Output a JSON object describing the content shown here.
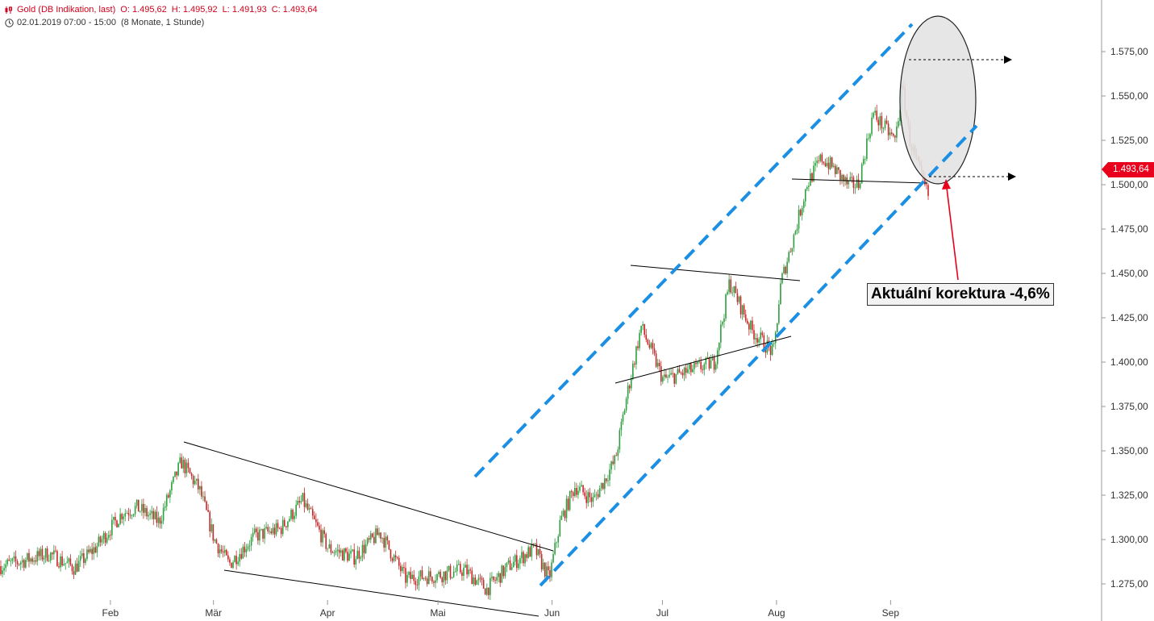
{
  "header": {
    "instrument": "Gold (DB Indikation, last)",
    "open": "O: 1.495,62",
    "high": "H: 1.495,92",
    "low": "L: 1.491,93",
    "close": "C: 1.493,64",
    "period": "02.01.2019 07:00 - 15:00",
    "range": "(8 Monate, 1 Stunde)",
    "icons": [
      "candles-icon",
      "clock-icon"
    ]
  },
  "price_tag": "1.493,64",
  "annotation": "Aktuální korektura -4,6%",
  "colors": {
    "up": "#2e9e3e",
    "down": "#c62828",
    "channel": "#1a8fe3",
    "trendline": "#000000",
    "arrow": "#e8001c",
    "ellipse_fill": "#e3e3e3",
    "text_red": "#d0021b"
  },
  "chart_data": {
    "type": "candlestick",
    "interval": "1 hour",
    "y_ticks": [
      "1.275,00",
      "1.300,00",
      "1.325,00",
      "1.350,00",
      "1.375,00",
      "1.400,00",
      "1.425,00",
      "1.450,00",
      "1.475,00",
      "1.500,00",
      "1.525,00",
      "1.550,00",
      "1.575,00"
    ],
    "ylim": [
      1262,
      1588
    ],
    "x_ticks": [
      "Feb",
      "Mär",
      "Apr",
      "Mai",
      "Jun",
      "Jul",
      "Aug",
      "Sep"
    ],
    "x_tick_dates": [
      "2019-02-01",
      "2019-03-01",
      "2019-04-01",
      "2019-05-01",
      "2019-06-01",
      "2019-07-01",
      "2019-08-01",
      "2019-09-01"
    ],
    "series": [
      {
        "approx_closes": [
          {
            "date": "2019-01-02",
            "v": 1285
          },
          {
            "date": "2019-01-08",
            "v": 1288
          },
          {
            "date": "2019-01-15",
            "v": 1292
          },
          {
            "date": "2019-01-22",
            "v": 1284
          },
          {
            "date": "2019-01-28",
            "v": 1296
          },
          {
            "date": "2019-02-04",
            "v": 1315
          },
          {
            "date": "2019-02-08",
            "v": 1318
          },
          {
            "date": "2019-02-14",
            "v": 1310
          },
          {
            "date": "2019-02-20",
            "v": 1344
          },
          {
            "date": "2019-02-25",
            "v": 1328
          },
          {
            "date": "2019-03-01",
            "v": 1300
          },
          {
            "date": "2019-03-05",
            "v": 1286
          },
          {
            "date": "2019-03-12",
            "v": 1302
          },
          {
            "date": "2019-03-19",
            "v": 1306
          },
          {
            "date": "2019-03-25",
            "v": 1322
          },
          {
            "date": "2019-04-01",
            "v": 1295
          },
          {
            "date": "2019-04-08",
            "v": 1290
          },
          {
            "date": "2019-04-15",
            "v": 1304
          },
          {
            "date": "2019-04-22",
            "v": 1278
          },
          {
            "date": "2019-05-01",
            "v": 1280
          },
          {
            "date": "2019-05-08",
            "v": 1283
          },
          {
            "date": "2019-05-14",
            "v": 1272
          },
          {
            "date": "2019-05-20",
            "v": 1285
          },
          {
            "date": "2019-05-27",
            "v": 1295
          },
          {
            "date": "2019-05-31",
            "v": 1278
          },
          {
            "date": "2019-06-03",
            "v": 1310
          },
          {
            "date": "2019-06-07",
            "v": 1330
          },
          {
            "date": "2019-06-12",
            "v": 1322
          },
          {
            "date": "2019-06-18",
            "v": 1345
          },
          {
            "date": "2019-06-21",
            "v": 1380
          },
          {
            "date": "2019-06-25",
            "v": 1420
          },
          {
            "date": "2019-07-01",
            "v": 1390
          },
          {
            "date": "2019-07-08",
            "v": 1395
          },
          {
            "date": "2019-07-15",
            "v": 1400
          },
          {
            "date": "2019-07-19",
            "v": 1445
          },
          {
            "date": "2019-07-25",
            "v": 1418
          },
          {
            "date": "2019-07-31",
            "v": 1405
          },
          {
            "date": "2019-08-02",
            "v": 1445
          },
          {
            "date": "2019-08-06",
            "v": 1475
          },
          {
            "date": "2019-08-09",
            "v": 1500
          },
          {
            "date": "2019-08-13",
            "v": 1515
          },
          {
            "date": "2019-08-16",
            "v": 1510
          },
          {
            "date": "2019-08-20",
            "v": 1500
          },
          {
            "date": "2019-08-23",
            "v": 1500
          },
          {
            "date": "2019-08-27",
            "v": 1540
          },
          {
            "date": "2019-09-02",
            "v": 1525
          },
          {
            "date": "2019-09-04",
            "v": 1555
          },
          {
            "date": "2019-09-06",
            "v": 1525
          },
          {
            "date": "2019-09-09",
            "v": 1505
          },
          {
            "date": "2019-09-11",
            "v": 1493.64
          }
        ]
      }
    ],
    "last_price": 1493.64,
    "grid": false
  }
}
